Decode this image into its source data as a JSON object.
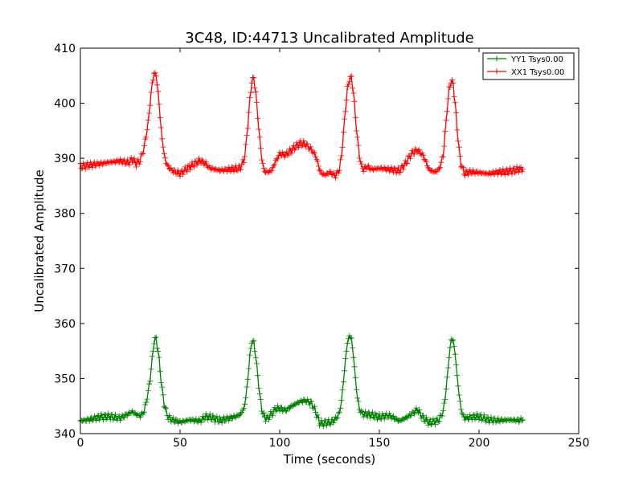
{
  "chart_data": {
    "type": "line",
    "title": "3C48, ID:44713 Uncalibrated Amplitude",
    "xlabel": "Time (seconds)",
    "ylabel": "Uncalibrated Amplitude",
    "xlim": [
      0,
      250
    ],
    "ylim": [
      340,
      410
    ],
    "xticks": [
      0,
      50,
      100,
      150,
      200,
      250
    ],
    "yticks": [
      340,
      350,
      360,
      370,
      380,
      390,
      400,
      410
    ],
    "grid": false,
    "legend_position": "top-right",
    "marker": "+",
    "series": [
      {
        "name": "YY1 Tsys0.00",
        "color": "#008000",
        "x": [
          0,
          5,
          10,
          15,
          20,
          24,
          26,
          28,
          30,
          32,
          34,
          35,
          36,
          37,
          38,
          39,
          40,
          41,
          42,
          43,
          44,
          46,
          50,
          55,
          60,
          63,
          65,
          70,
          75,
          80,
          82,
          83,
          84,
          85,
          86,
          87,
          88,
          89,
          90,
          91,
          92,
          93,
          94,
          96,
          98,
          100,
          103,
          106,
          110,
          113,
          116,
          118,
          120,
          121,
          123,
          125,
          128,
          130,
          131,
          132,
          133,
          134,
          135,
          136,
          137,
          138,
          139,
          140,
          141,
          142,
          144,
          146,
          150,
          155,
          160,
          163,
          166,
          169,
          172,
          175,
          178,
          180,
          182,
          183,
          184,
          185,
          186,
          187,
          188,
          189,
          190,
          191,
          192,
          193,
          194,
          196,
          200,
          205,
          210,
          215,
          220,
          222
        ],
        "values": [
          342.3,
          342.6,
          343.0,
          343.1,
          342.8,
          343.6,
          344.0,
          343.5,
          343.2,
          344.0,
          347.5,
          350.0,
          353.5,
          356.8,
          357.2,
          355.0,
          351.5,
          348.0,
          345.5,
          344.0,
          343.0,
          342.5,
          342.1,
          342.5,
          342.3,
          343.1,
          343.0,
          342.4,
          342.8,
          343.4,
          344.5,
          346.5,
          350.0,
          354.0,
          356.8,
          356.5,
          354.0,
          350.5,
          347.0,
          344.5,
          343.2,
          342.8,
          342.8,
          343.6,
          344.5,
          344.6,
          344.2,
          345.0,
          345.8,
          346.0,
          345.5,
          344.0,
          342.0,
          341.8,
          342.0,
          342.0,
          342.6,
          343.8,
          346.0,
          349.5,
          353.5,
          356.5,
          357.8,
          357.2,
          354.0,
          350.0,
          346.5,
          344.5,
          343.8,
          343.5,
          343.5,
          343.4,
          343.0,
          343.3,
          342.3,
          342.8,
          343.5,
          344.4,
          342.8,
          342.0,
          342.2,
          342.5,
          344.0,
          346.5,
          350.0,
          354.0,
          357.0,
          357.0,
          354.5,
          350.5,
          347.0,
          344.5,
          343.2,
          342.8,
          342.8,
          343.0,
          343.1,
          342.5,
          342.4,
          342.5,
          342.4,
          342.5
        ]
      },
      {
        "name": "XX1 Tsys0.00",
        "color": "#ff0000",
        "x": [
          0,
          5,
          10,
          15,
          20,
          24,
          26,
          28,
          30,
          32,
          34,
          35,
          36,
          37,
          38,
          39,
          40,
          41,
          42,
          43,
          44,
          46,
          50,
          55,
          60,
          63,
          65,
          70,
          75,
          80,
          82,
          83,
          84,
          85,
          86,
          87,
          88,
          89,
          90,
          91,
          92,
          93,
          94,
          96,
          98,
          100,
          103,
          106,
          110,
          113,
          116,
          118,
          120,
          121,
          123,
          125,
          128,
          130,
          131,
          132,
          133,
          134,
          135,
          136,
          137,
          138,
          139,
          140,
          141,
          142,
          144,
          146,
          150,
          155,
          160,
          163,
          166,
          169,
          172,
          175,
          178,
          180,
          182,
          183,
          184,
          185,
          186,
          187,
          188,
          189,
          190,
          191,
          192,
          193,
          194,
          196,
          200,
          205,
          210,
          215,
          220,
          222
        ],
        "values": [
          388.5,
          388.8,
          389.0,
          389.3,
          389.5,
          389.2,
          389.8,
          389.0,
          389.6,
          392.0,
          396.5,
          400.0,
          403.5,
          405.5,
          405.0,
          402.0,
          397.5,
          393.5,
          390.8,
          389.2,
          388.5,
          387.8,
          387.2,
          388.5,
          389.6,
          389.0,
          388.2,
          387.8,
          388.0,
          388.2,
          389.5,
          392.0,
          396.0,
          400.5,
          404.0,
          404.5,
          402.0,
          397.5,
          393.5,
          390.0,
          388.0,
          387.5,
          387.5,
          387.8,
          389.5,
          390.8,
          390.6,
          391.5,
          392.7,
          392.6,
          391.5,
          390.5,
          388.0,
          387.2,
          387.0,
          387.5,
          386.8,
          388.0,
          390.5,
          394.5,
          399.0,
          402.5,
          404.5,
          404.5,
          402.0,
          397.5,
          393.5,
          390.5,
          388.5,
          388.0,
          388.5,
          388.0,
          388.2,
          388.0,
          387.7,
          389.0,
          390.8,
          391.5,
          390.5,
          387.9,
          387.5,
          388.0,
          390.5,
          394.5,
          399.0,
          402.5,
          404.0,
          403.5,
          400.0,
          395.5,
          391.5,
          389.0,
          387.8,
          387.2,
          387.5,
          387.5,
          387.4,
          387.2,
          387.5,
          387.6,
          388.0,
          388.0
        ]
      }
    ]
  }
}
